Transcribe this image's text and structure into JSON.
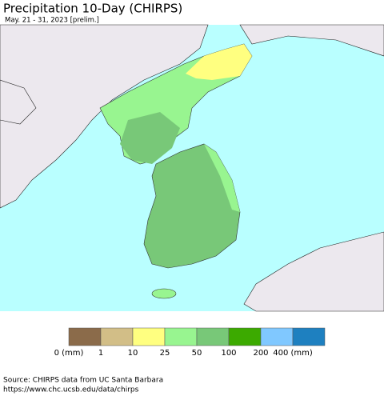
{
  "header": {
    "title": "Precipitation 10-Day (CHIRPS)",
    "subtitle": "May. 21 - 31, 2023 [prelim.]"
  },
  "legend": {
    "colors": [
      "#8b6b4a",
      "#d2be87",
      "#ffff80",
      "#98f590",
      "#78c878",
      "#3caa00",
      "#80c8ff",
      "#1e80c0"
    ],
    "labels": [
      "0 (mm)",
      "1",
      "10",
      "25",
      "50",
      "100",
      "200",
      "400 (mm)"
    ]
  },
  "footer": {
    "lines": [
      "Source: CHIRPS data from UC Santa Barbara",
      "https://www.chc.ucsb.edu/data/chirps"
    ]
  }
}
